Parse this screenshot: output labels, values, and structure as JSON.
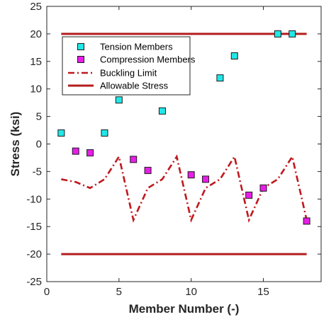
{
  "chart_data": {
    "type": "scatter",
    "xlabel": "Member Number (-)",
    "ylabel": "Stress (ksi)",
    "xlim": [
      0,
      19
    ],
    "ylim": [
      -25,
      25
    ],
    "xticks": [
      0,
      5,
      10,
      15
    ],
    "yticks": [
      25,
      20,
      15,
      10,
      5,
      0,
      -5,
      -10,
      -15,
      -20,
      -25
    ],
    "grid": false,
    "legend_position": "top-left",
    "series": [
      {
        "name": "Tension Members",
        "kind": "square-marker",
        "color": "#21e8e8",
        "x": [
          1,
          4,
          5,
          8,
          12,
          13,
          16,
          17
        ],
        "y": [
          2,
          2,
          8,
          6,
          12,
          16,
          20,
          20
        ]
      },
      {
        "name": "Compression Members",
        "kind": "square-marker",
        "color": "#e81ee8",
        "x": [
          2,
          3,
          6,
          7,
          10,
          11,
          14,
          15,
          18
        ],
        "y": [
          -1.3,
          -1.6,
          -2.8,
          -4.8,
          -5.6,
          -6.4,
          -9.3,
          -8.0,
          -14.0
        ]
      },
      {
        "name": "Buckling Limit",
        "kind": "dash-dot-line",
        "color": "#c0181e",
        "x": [
          1,
          2,
          3,
          4,
          5,
          6,
          7,
          8,
          9,
          10,
          11,
          12,
          13,
          14,
          15,
          16,
          17,
          18
        ],
        "y": [
          -6.4,
          -6.9,
          -8.0,
          -6.4,
          -2.3,
          -13.8,
          -8.0,
          -6.4,
          -2.3,
          -13.8,
          -8.0,
          -6.4,
          -2.3,
          -13.8,
          -8.0,
          -6.4,
          -2.3,
          -13.8
        ]
      },
      {
        "name": "Allowable Stress",
        "kind": "solid-line",
        "color": "#b41c1c",
        "x": [
          1,
          18
        ],
        "y": [
          20,
          20
        ]
      },
      {
        "kind": "solid-line",
        "color": "#b41c1c",
        "x": [
          1,
          18
        ],
        "y": [
          -20,
          -20
        ]
      }
    ]
  }
}
